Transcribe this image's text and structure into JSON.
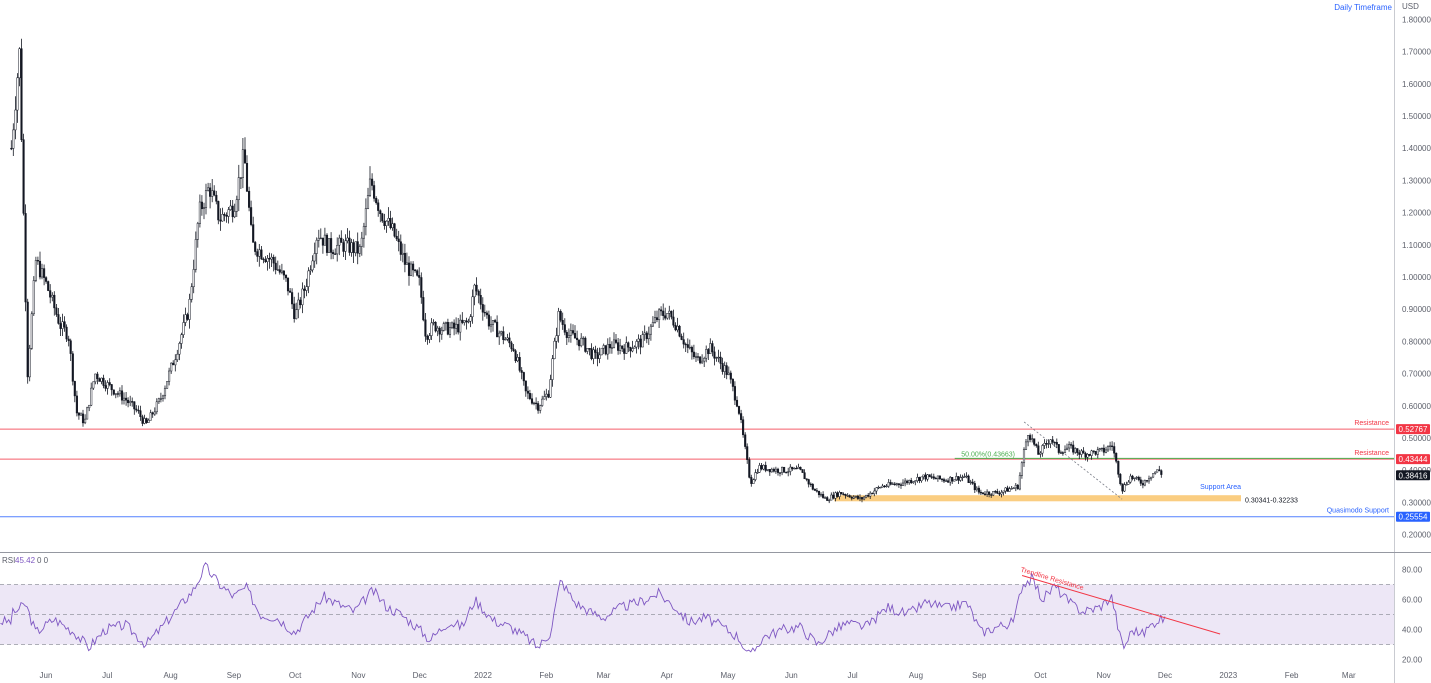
{
  "chart_data": {
    "type": "candlestick",
    "title": "Daily Timeframe",
    "currency": "USD",
    "y_ticks": [
      "1.80000",
      "1.70000",
      "1.60000",
      "1.50000",
      "1.40000",
      "1.30000",
      "1.20000",
      "1.10000",
      "1.00000",
      "0.90000",
      "0.80000",
      "0.70000",
      "0.60000",
      "0.50000",
      "0.40000",
      "0.30000",
      "0.20000"
    ],
    "ylim": [
      0.14,
      1.86
    ],
    "x_ticks": [
      "Jun",
      "Jul",
      "Aug",
      "Sep",
      "Oct",
      "Nov",
      "Dec",
      "2022",
      "Feb",
      "Mar",
      "Apr",
      "May",
      "Jun",
      "Jul",
      "Aug",
      "Sep",
      "Oct",
      "Nov",
      "Dec",
      "2023",
      "Feb",
      "Mar"
    ],
    "price_path": [
      [
        "2021-05-15",
        1.4
      ],
      [
        "2021-05-19",
        1.7
      ],
      [
        "2021-05-23",
        0.7
      ],
      [
        "2021-05-27",
        1.05
      ],
      [
        "2021-06-01",
        0.98
      ],
      [
        "2021-06-08",
        0.85
      ],
      [
        "2021-06-12",
        0.82
      ],
      [
        "2021-06-16",
        0.58
      ],
      [
        "2021-06-20",
        0.55
      ],
      [
        "2021-06-25",
        0.7
      ],
      [
        "2021-07-02",
        0.66
      ],
      [
        "2021-07-10",
        0.62
      ],
      [
        "2021-07-16",
        0.58
      ],
      [
        "2021-07-20",
        0.54
      ],
      [
        "2021-07-27",
        0.62
      ],
      [
        "2021-08-03",
        0.75
      ],
      [
        "2021-08-10",
        0.9
      ],
      [
        "2021-08-15",
        1.2
      ],
      [
        "2021-08-20",
        1.28
      ],
      [
        "2021-08-25",
        1.18
      ],
      [
        "2021-09-01",
        1.22
      ],
      [
        "2021-09-06",
        1.38
      ],
      [
        "2021-09-10",
        1.1
      ],
      [
        "2021-09-20",
        1.05
      ],
      [
        "2021-09-27",
        0.98
      ],
      [
        "2021-10-01",
        0.88
      ],
      [
        "2021-10-06",
        0.97
      ],
      [
        "2021-10-12",
        1.14
      ],
      [
        "2021-10-18",
        1.09
      ],
      [
        "2021-10-25",
        1.1
      ],
      [
        "2021-11-02",
        1.08
      ],
      [
        "2021-11-07",
        1.3
      ],
      [
        "2021-11-12",
        1.2
      ],
      [
        "2021-11-18",
        1.14
      ],
      [
        "2021-11-24",
        1.04
      ],
      [
        "2021-12-01",
        0.98
      ],
      [
        "2021-12-04",
        0.82
      ],
      [
        "2021-12-08",
        0.85
      ],
      [
        "2021-12-12",
        0.84
      ],
      [
        "2021-12-18",
        0.84
      ],
      [
        "2021-12-25",
        0.86
      ],
      [
        "2021-12-28",
        0.97
      ],
      [
        "2022-01-04",
        0.86
      ],
      [
        "2022-01-10",
        0.82
      ],
      [
        "2022-01-16",
        0.78
      ],
      [
        "2022-01-22",
        0.64
      ],
      [
        "2022-01-28",
        0.6
      ],
      [
        "2022-02-02",
        0.64
      ],
      [
        "2022-02-07",
        0.88
      ],
      [
        "2022-02-12",
        0.82
      ],
      [
        "2022-02-18",
        0.8
      ],
      [
        "2022-02-25",
        0.75
      ],
      [
        "2022-03-05",
        0.79
      ],
      [
        "2022-03-12",
        0.78
      ],
      [
        "2022-03-20",
        0.8
      ],
      [
        "2022-03-28",
        0.88
      ],
      [
        "2022-04-01",
        0.89
      ],
      [
        "2022-04-06",
        0.85
      ],
      [
        "2022-04-11",
        0.78
      ],
      [
        "2022-04-16",
        0.74
      ],
      [
        "2022-04-22",
        0.78
      ],
      [
        "2022-05-01",
        0.7
      ],
      [
        "2022-05-06",
        0.6
      ],
      [
        "2022-05-10",
        0.44
      ],
      [
        "2022-05-12",
        0.36
      ],
      [
        "2022-05-16",
        0.41
      ],
      [
        "2022-05-25",
        0.4
      ],
      [
        "2022-06-05",
        0.4
      ],
      [
        "2022-06-12",
        0.34
      ],
      [
        "2022-06-18",
        0.31
      ],
      [
        "2022-06-25",
        0.33
      ],
      [
        "2022-07-05",
        0.31
      ],
      [
        "2022-07-15",
        0.35
      ],
      [
        "2022-07-25",
        0.36
      ],
      [
        "2022-08-05",
        0.38
      ],
      [
        "2022-08-15",
        0.37
      ],
      [
        "2022-08-25",
        0.38
      ],
      [
        "2022-09-01",
        0.33
      ],
      [
        "2022-09-10",
        0.33
      ],
      [
        "2022-09-20",
        0.35
      ],
      [
        "2022-09-23",
        0.46
      ],
      [
        "2022-09-25",
        0.52
      ],
      [
        "2022-09-30",
        0.45
      ],
      [
        "2022-10-06",
        0.5
      ],
      [
        "2022-10-10",
        0.46
      ],
      [
        "2022-10-15",
        0.47
      ],
      [
        "2022-10-22",
        0.45
      ],
      [
        "2022-11-01",
        0.46
      ],
      [
        "2022-11-05",
        0.48
      ],
      [
        "2022-11-08",
        0.4
      ],
      [
        "2022-11-10",
        0.34
      ],
      [
        "2022-11-14",
        0.38
      ],
      [
        "2022-11-20",
        0.36
      ],
      [
        "2022-11-25",
        0.39
      ],
      [
        "2022-11-28",
        0.4
      ],
      [
        "2022-11-30",
        0.384
      ]
    ],
    "levels": [
      {
        "value": 0.52767,
        "label": "Resistance",
        "badge": "0.52767",
        "color": "#f23645"
      },
      {
        "value": 0.43444,
        "label": "Resistance",
        "badge": "0.43444",
        "color": "#f23645"
      },
      {
        "value": 0.38416,
        "label": "",
        "badge": "0.38416",
        "color": "#131722"
      },
      {
        "value": 0.25554,
        "label": "Quasimodo Support",
        "badge": "0.25554",
        "color": "#2962ff"
      }
    ],
    "support_area": {
      "label": "Support Area",
      "range_text": "0.30341-0.32233",
      "low": 0.30341,
      "high": 0.32233,
      "start": "2022-06-22",
      "end": "2023-01-01"
    },
    "fib": {
      "label": "50.00%(0.43663)",
      "value": 0.43663,
      "start": "2022-09-23",
      "end": "2022-11-10",
      "line_start": "2022-08-20",
      "line_end": "2023-01-01"
    },
    "rsi": {
      "label": "RSI",
      "value": "45.42",
      "extra": "0 0",
      "y_ticks": [
        "80.00",
        "60.00",
        "40.00",
        "20.00"
      ],
      "ylim": [
        15,
        88
      ],
      "band": [
        30,
        70
      ],
      "mid": 50,
      "trendline": {
        "label": "Trendline Resistance",
        "start": [
          "2022-09-22",
          76
        ],
        "end": [
          "2022-12-28",
          37
        ]
      },
      "path": [
        [
          "2021-05-15",
          50
        ],
        [
          "2021-05-22",
          57
        ],
        [
          "2021-05-27",
          38
        ],
        [
          "2021-06-05",
          47
        ],
        [
          "2021-06-15",
          38
        ],
        [
          "2021-06-22",
          28
        ],
        [
          "2021-06-30",
          40
        ],
        [
          "2021-07-10",
          43
        ],
        [
          "2021-07-20",
          30
        ],
        [
          "2021-07-28",
          42
        ],
        [
          "2021-08-05",
          55
        ],
        [
          "2021-08-12",
          66
        ],
        [
          "2021-08-18",
          82
        ],
        [
          "2021-08-25",
          70
        ],
        [
          "2021-09-01",
          62
        ],
        [
          "2021-09-07",
          68
        ],
        [
          "2021-09-14",
          50
        ],
        [
          "2021-09-22",
          48
        ],
        [
          "2021-10-01",
          38
        ],
        [
          "2021-10-08",
          50
        ],
        [
          "2021-10-15",
          62
        ],
        [
          "2021-10-22",
          57
        ],
        [
          "2021-10-30",
          52
        ],
        [
          "2021-11-08",
          66
        ],
        [
          "2021-11-15",
          55
        ],
        [
          "2021-11-22",
          50
        ],
        [
          "2021-12-01",
          40
        ],
        [
          "2021-12-06",
          33
        ],
        [
          "2021-12-15",
          45
        ],
        [
          "2021-12-22",
          42
        ],
        [
          "2021-12-28",
          60
        ],
        [
          "2022-01-06",
          46
        ],
        [
          "2022-01-14",
          42
        ],
        [
          "2022-01-22",
          35
        ],
        [
          "2022-01-28",
          28
        ],
        [
          "2022-02-03",
          38
        ],
        [
          "2022-02-08",
          73
        ],
        [
          "2022-02-15",
          58
        ],
        [
          "2022-02-22",
          52
        ],
        [
          "2022-03-01",
          48
        ],
        [
          "2022-03-10",
          55
        ],
        [
          "2022-03-18",
          58
        ],
        [
          "2022-03-28",
          64
        ],
        [
          "2022-04-05",
          55
        ],
        [
          "2022-04-12",
          45
        ],
        [
          "2022-04-20",
          48
        ],
        [
          "2022-04-28",
          42
        ],
        [
          "2022-05-06",
          35
        ],
        [
          "2022-05-12",
          22
        ],
        [
          "2022-05-18",
          35
        ],
        [
          "2022-05-28",
          40
        ],
        [
          "2022-06-05",
          42
        ],
        [
          "2022-06-14",
          30
        ],
        [
          "2022-06-20",
          38
        ],
        [
          "2022-06-28",
          44
        ],
        [
          "2022-07-08",
          42
        ],
        [
          "2022-07-18",
          55
        ],
        [
          "2022-07-28",
          50
        ],
        [
          "2022-08-06",
          58
        ],
        [
          "2022-08-16",
          54
        ],
        [
          "2022-08-26",
          58
        ],
        [
          "2022-09-02",
          38
        ],
        [
          "2022-09-10",
          42
        ],
        [
          "2022-09-18",
          45
        ],
        [
          "2022-09-22",
          70
        ],
        [
          "2022-09-27",
          74
        ],
        [
          "2022-10-02",
          60
        ],
        [
          "2022-10-08",
          69
        ],
        [
          "2022-10-15",
          58
        ],
        [
          "2022-10-22",
          52
        ],
        [
          "2022-10-30",
          55
        ],
        [
          "2022-11-05",
          62
        ],
        [
          "2022-11-09",
          35
        ],
        [
          "2022-11-11",
          28
        ],
        [
          "2022-11-15",
          40
        ],
        [
          "2022-11-20",
          37
        ],
        [
          "2022-11-25",
          44
        ],
        [
          "2022-11-29",
          48
        ],
        [
          "2022-12-01",
          45.4
        ]
      ]
    },
    "colors": {
      "candle": "#131722",
      "rsi_line": "#7e57c2",
      "rsi_band": "#ede7f6",
      "support_area": "#f9c46b",
      "fib": "#4caf50",
      "level_red": "#f23645",
      "level_blue": "#2962ff",
      "title": "#2962ff"
    }
  }
}
